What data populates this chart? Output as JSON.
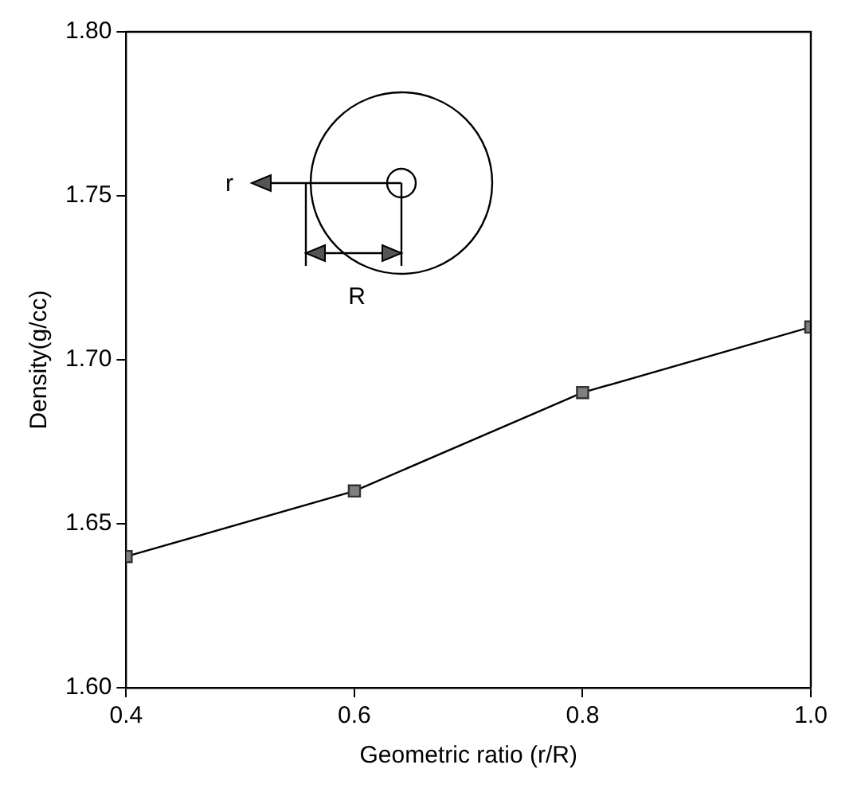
{
  "chart_data": {
    "type": "line",
    "xlabel": "Geometric ratio (r/R)",
    "ylabel": "Density(g/cc)",
    "x": [
      0.4,
      0.6,
      0.8,
      1.0
    ],
    "series": [
      {
        "color": "#808080",
        "values": [
          1.64,
          1.66,
          1.69,
          1.71
        ]
      }
    ],
    "xlim": [
      0.4,
      1.0
    ],
    "xticks": [
      {
        "value": 0.4,
        "label": "0.4"
      },
      {
        "value": 0.6,
        "label": "0.6"
      },
      {
        "value": 0.8,
        "label": "0.8"
      },
      {
        "value": 1.0,
        "label": "1.0"
      }
    ],
    "ylim": [
      1.6,
      1.8
    ],
    "yticks": [
      {
        "value": 1.6,
        "label": "1.60"
      },
      {
        "value": 1.65,
        "label": "1.65"
      },
      {
        "value": 1.7,
        "label": "1.70"
      },
      {
        "value": 1.75,
        "label": "1.75"
      },
      {
        "value": 1.8,
        "label": "1.80"
      }
    ],
    "marker": "square",
    "line_style": "solid",
    "grid": false,
    "legend": false,
    "annotations": [
      "r",
      "R"
    ]
  }
}
